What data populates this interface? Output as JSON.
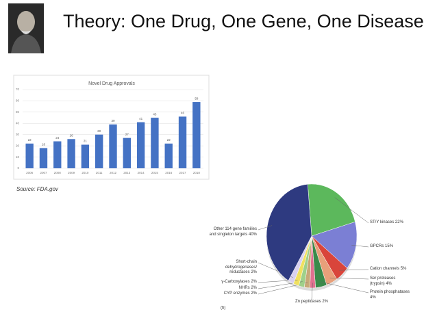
{
  "slide": {
    "title": "Theory: One Drug, One Gene, One Disease",
    "source": "Source: FDA.gov"
  },
  "chart_data": [
    {
      "type": "bar",
      "title": "Novel Drug Approvals",
      "categories": [
        "2006",
        "2007",
        "2008",
        "2009",
        "2010",
        "2011",
        "2012",
        "2013",
        "2014",
        "2015",
        "2016",
        "2017",
        "2018"
      ],
      "values": [
        22,
        18,
        24,
        26,
        21,
        30,
        39,
        27,
        41,
        45,
        22,
        46,
        59
      ],
      "color": "#4472c4",
      "ylim": [
        0,
        70
      ],
      "yticks": [
        0,
        10,
        20,
        30,
        40,
        50,
        60,
        70
      ],
      "grid": true
    },
    {
      "type": "pie",
      "annotation": "(b)",
      "categories": [
        "ST/Y kinases",
        "GPCRs",
        "Cation channels",
        "Ser proteases (trypsin)",
        "Protein phosphatases",
        "Zn peptidases",
        "CYP enzymes",
        "NHRs",
        "γ-Carboxylases",
        "Short-chain dehydrogenases/ reductases",
        "Other 114 gene families and singleton targets"
      ],
      "values": [
        22,
        15,
        5,
        4,
        4,
        2,
        2,
        2,
        2,
        2,
        40
      ],
      "value_labels": [
        "22%",
        "15%",
        "5%",
        "4%",
        "4%",
        "2%",
        "2%",
        "2%",
        "2%",
        "2%",
        "40%"
      ],
      "colors": [
        "#5cb85c",
        "#7b7fd4",
        "#d9453b",
        "#e8a07a",
        "#3a8a4a",
        "#e07090",
        "#c8a878",
        "#9fd08a",
        "#f0e060",
        "#d8d0f0",
        "#2e3a80"
      ]
    }
  ]
}
